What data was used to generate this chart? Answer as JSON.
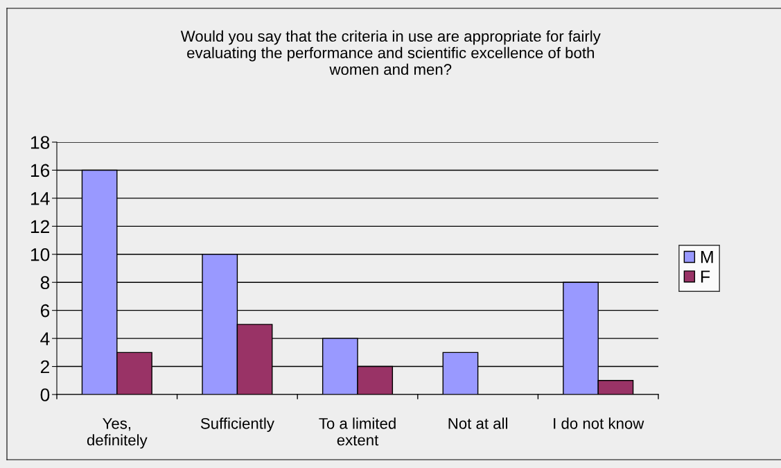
{
  "chart_data": {
    "type": "bar",
    "title": "Would you say that the criteria in use are appropriate for fairly\nevaluating the performance and scientific excellence of both\nwomen and men?",
    "categories": [
      "Yes,\ndefinitely",
      "Sufficiently",
      "To a limited\nextent",
      "Not at all",
      "I do not know"
    ],
    "series": [
      {
        "name": "M",
        "color": "#9999ff",
        "values": [
          16,
          10,
          4,
          3,
          8
        ]
      },
      {
        "name": "F",
        "color": "#993366",
        "values": [
          3,
          5,
          2,
          0,
          1
        ]
      }
    ],
    "ylim": [
      0,
      18
    ],
    "yticks": [
      0,
      2,
      4,
      6,
      8,
      10,
      12,
      14,
      16,
      18
    ],
    "grid": "y",
    "legend": "right"
  }
}
